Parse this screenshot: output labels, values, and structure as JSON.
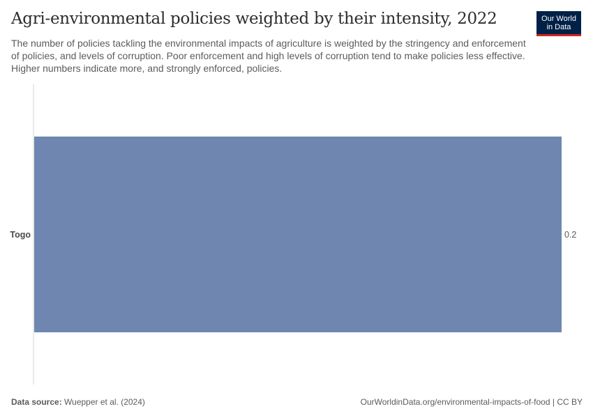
{
  "header": {
    "title": "Agri-environmental policies weighted by their intensity, 2022",
    "subtitle": "The number of policies tackling the environmental impacts of agriculture is weighted by the stringency and enforcement of policies, and levels of corruption. Poor enforcement and high levels of corruption tend to make policies less effective. Higher numbers indicate more, and strongly enforced, policies."
  },
  "logo": {
    "line1": "Our World",
    "line2": "in Data"
  },
  "chart_data": {
    "type": "bar",
    "orientation": "horizontal",
    "categories": [
      "Togo"
    ],
    "values": [
      0.2
    ],
    "value_labels": [
      "0.2"
    ],
    "bar_color": "#6f87b0",
    "xlim": [
      0,
      0.2
    ],
    "title": "Agri-environmental policies weighted by their intensity, 2022",
    "xlabel": "",
    "ylabel": "",
    "grid": false
  },
  "footer": {
    "source_label": "Data source:",
    "source_text": "Wuepper et al. (2024)",
    "right_text": "OurWorldinData.org/environmental-impacts-of-food | CC BY"
  }
}
